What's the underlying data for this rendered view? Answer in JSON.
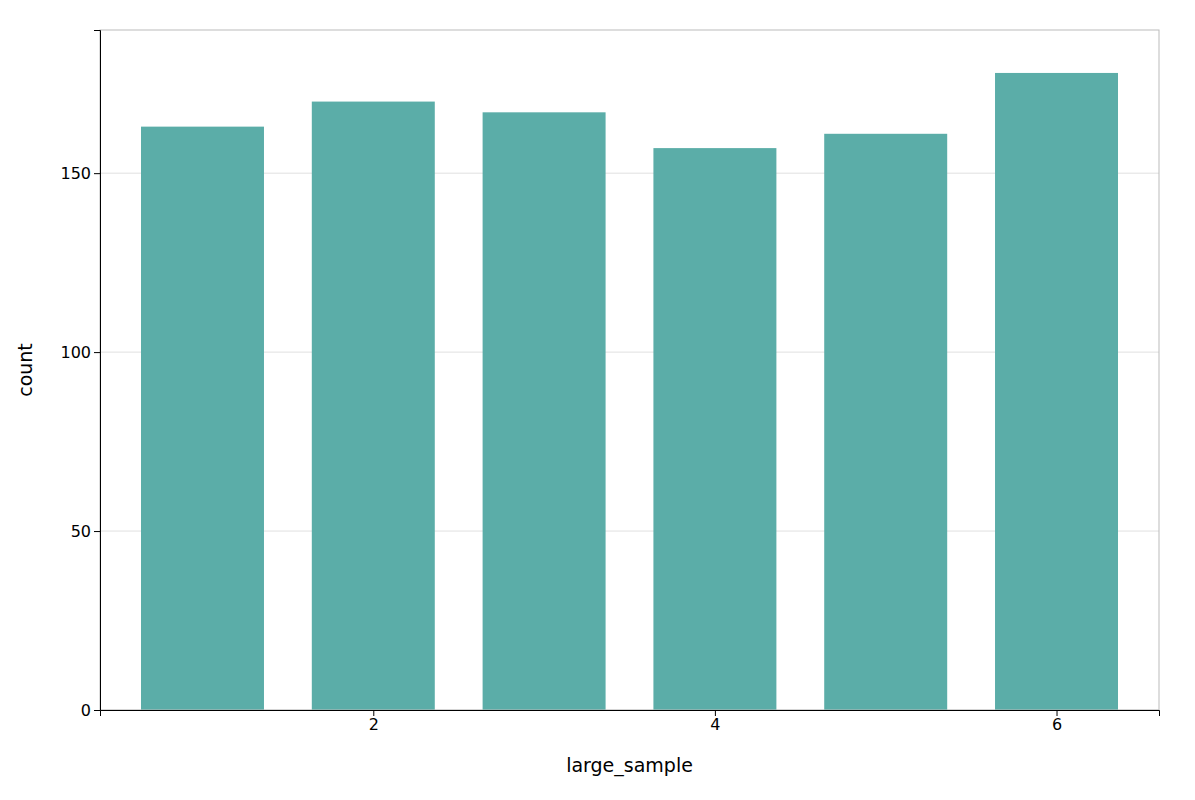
{
  "chart_data": {
    "type": "bar",
    "x": [
      1,
      2,
      3,
      4,
      5,
      6
    ],
    "values": [
      163,
      170,
      167,
      157,
      161,
      178
    ],
    "color": "#5BADA8",
    "xlabel": "large_sample",
    "ylabel": "count",
    "xlim": [
      0.4,
      6.6
    ],
    "xticks": [
      2,
      4,
      6
    ],
    "ylim": [
      0,
      190
    ],
    "yticks": [
      0,
      50,
      100,
      150
    ],
    "grid": true
  }
}
